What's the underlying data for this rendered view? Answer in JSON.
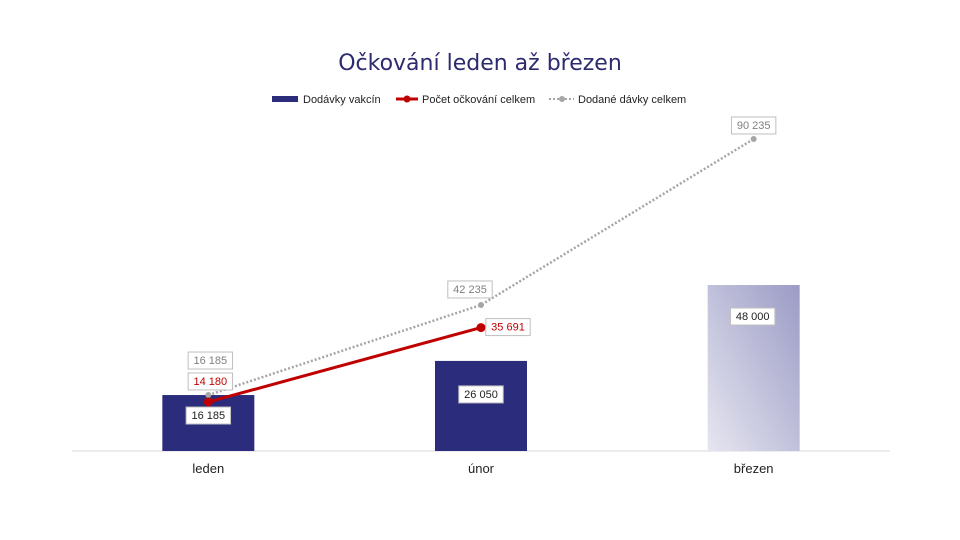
{
  "chart_data": {
    "type": "bar",
    "title": "Očkování leden až březen",
    "categories": [
      "leden",
      "únor",
      "březen"
    ],
    "series": [
      {
        "name": "Dodávky vakcín",
        "kind": "bar",
        "color": "#2b2d7c",
        "values": [
          16185,
          26050,
          48000
        ],
        "labels": [
          "16 185",
          "26 050",
          "48 000"
        ],
        "styles": [
          "solid",
          "solid",
          "gradient-forecast"
        ]
      },
      {
        "name": "Počet očkování celkem",
        "kind": "line",
        "color": "#c00000",
        "values": [
          14180,
          35691,
          null
        ],
        "labels": [
          "14 180",
          "35 691",
          ""
        ]
      },
      {
        "name": "Dodané dávky celkem",
        "kind": "line-dotted",
        "color": "#a6a6a6",
        "values": [
          16185,
          42235,
          90235
        ],
        "labels": [
          "16 185",
          "42 235",
          "90 235"
        ]
      }
    ],
    "ylim": [
      0,
      95000
    ],
    "xlabel": "",
    "ylabel": "",
    "grid": false,
    "legend": "top"
  }
}
